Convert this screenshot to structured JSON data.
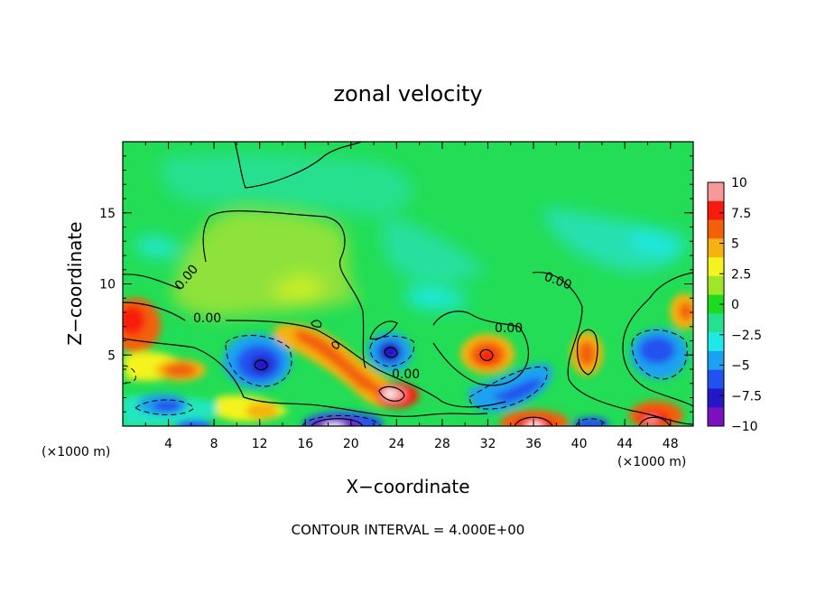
{
  "chart_data": {
    "type": "heatmap",
    "title": "zonal velocity",
    "xlabel": "X−coordinate",
    "ylabel": "Z−coordinate",
    "x_unit_left": "(×1000 m)",
    "x_unit_right": "(×1000 m)",
    "xlim": [
      0,
      50
    ],
    "ylim": [
      0,
      20
    ],
    "xticks": [
      "4",
      "8",
      "12",
      "16",
      "20",
      "24",
      "28",
      "32",
      "36",
      "40",
      "44",
      "48"
    ],
    "yticks": [
      "5",
      "10",
      "15"
    ],
    "colorbar": {
      "range": [
        -10,
        10
      ],
      "ticks": [
        "10",
        "7.5",
        "5",
        "2.5",
        "0",
        "−2.5",
        "−5",
        "−7.5",
        "−10"
      ],
      "colors": [
        "#f79999",
        "#f81a0c",
        "#f2600a",
        "#f7b211",
        "#f4f31f",
        "#9fe62a",
        "#1ddb1f",
        "#25e08c",
        "#1ee9e7",
        "#1aa2f1",
        "#2052ef",
        "#2417c8",
        "#7b12c0"
      ]
    },
    "contour_interval": "CONTOUR INTERVAL = 4.000E+00",
    "contour_labels": [
      "0.00",
      "0.00",
      "0.00",
      "0.00",
      "0.00"
    ],
    "features": [
      {
        "x": 1.5,
        "z": 7.5,
        "value": 8
      },
      {
        "x": 5.5,
        "z": 4,
        "value": 5
      },
      {
        "x": 12.5,
        "z": 4.5,
        "value": -7
      },
      {
        "x": 18,
        "z": 5.5,
        "value": 4
      },
      {
        "x": 23.5,
        "z": 2.2,
        "value": 10
      },
      {
        "x": 23.5,
        "z": 5.2,
        "value": -8
      },
      {
        "x": 31.5,
        "z": 5.2,
        "value": 9
      },
      {
        "x": 36,
        "z": 0.4,
        "value": 10
      },
      {
        "x": 34,
        "z": 2.5,
        "value": -6
      },
      {
        "x": 40,
        "z": 5,
        "value": 5
      },
      {
        "x": 45.5,
        "z": 4.5,
        "value": -6
      },
      {
        "x": 46.5,
        "z": 1,
        "value": 9
      },
      {
        "x": 18.5,
        "z": 0.3,
        "value": -10
      },
      {
        "x": 4,
        "z": 1.5,
        "value": -5
      },
      {
        "x": 48.5,
        "z": 8,
        "value": 4
      }
    ]
  }
}
